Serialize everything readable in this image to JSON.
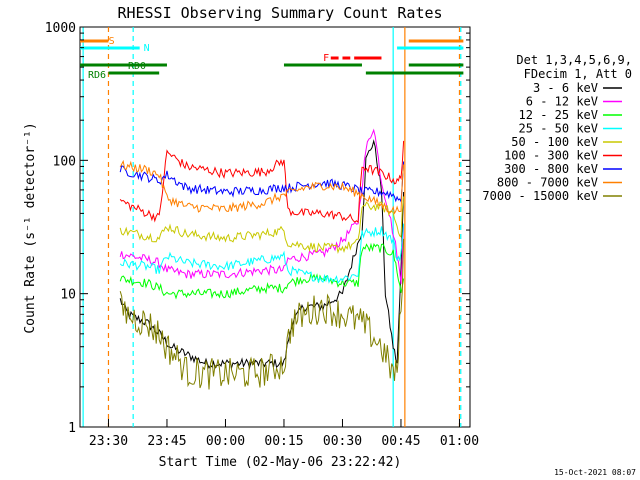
{
  "chart_data": {
    "type": "line",
    "title": "RHESSI Observing Summary Count Rates",
    "xlabel": "Start Time (02-May-06 23:22:42)",
    "ylabel": "Count Rate (s⁻¹ detector⁻¹)",
    "yscale": "log",
    "ylim": [
      1,
      1000
    ],
    "xlim": [
      "23:22:42",
      "01:02:42"
    ],
    "x_ticks": [
      "23:30",
      "23:45",
      "00:00",
      "00:15",
      "00:30",
      "00:45",
      "01:00"
    ],
    "y_ticks": [
      "1",
      "10",
      "100",
      "1000"
    ],
    "grid": false,
    "legend_position": "right",
    "legend_header": [
      "Det 1,3,4,5,6,9,",
      "FDecim 1, Att 0"
    ],
    "timestamp": "15-Oct-2021 08:07",
    "series": [
      {
        "name": "3 - 6 keV",
        "color": "#000000",
        "x": [
          "23:26",
          "23:33",
          "23:35",
          "23:40",
          "23:43",
          "23:46",
          "23:50",
          "23:55",
          "00:00",
          "00:05",
          "00:10",
          "00:15",
          "00:17",
          "00:20",
          "00:25",
          "00:30",
          "00:35",
          "00:36",
          "00:38",
          "00:40",
          "00:41",
          "00:43",
          "00:44",
          "00:45",
          "00:46"
        ],
        "y": [
          null,
          9,
          7,
          6,
          5,
          4,
          3.5,
          3,
          3,
          3,
          3,
          3,
          6,
          8,
          8,
          10,
          30,
          100,
          140,
          60,
          10,
          4,
          3,
          15,
          120
        ]
      },
      {
        "name": "6 - 12 keV",
        "color": "#ff00ff",
        "x": [
          "23:33",
          "23:40",
          "23:43",
          "23:45",
          "23:50",
          "00:00",
          "00:10",
          "00:15",
          "00:16",
          "00:20",
          "00:25",
          "00:30",
          "00:34",
          "00:36",
          "00:38",
          "00:40",
          "00:42",
          "00:44",
          "00:45",
          "00:46"
        ],
        "y": [
          20,
          18,
          17,
          15,
          14,
          14,
          15,
          15,
          18,
          19,
          20,
          25,
          35,
          120,
          180,
          70,
          40,
          20,
          12,
          60
        ]
      },
      {
        "name": "12 - 25 keV",
        "color": "#00ff00",
        "x": [
          "23:33",
          "23:40",
          "23:43",
          "23:45",
          "23:50",
          "00:00",
          "00:10",
          "00:15",
          "00:16",
          "00:20",
          "00:25",
          "00:30",
          "00:34",
          "00:35",
          "00:40",
          "00:43",
          "00:44",
          "00:45",
          "00:46"
        ],
        "y": [
          13,
          12,
          11,
          10,
          10,
          10,
          11,
          11,
          12,
          13,
          13,
          12,
          12,
          22,
          22,
          20,
          15,
          10,
          15
        ]
      },
      {
        "name": "25 - 50 keV",
        "color": "#00ffff",
        "x": [
          "23:33",
          "23:40",
          "23:43",
          "23:45",
          "23:50",
          "00:00",
          "00:10",
          "00:15",
          "00:16",
          "00:20",
          "00:25",
          "00:30",
          "00:34",
          "00:35",
          "00:40",
          "00:43",
          "00:44",
          "00:45",
          "00:46"
        ],
        "y": [
          17,
          16,
          15,
          19,
          17,
          16,
          18,
          19,
          15,
          14,
          13,
          13,
          14,
          28,
          30,
          25,
          18,
          20,
          40
        ]
      },
      {
        "name": "50 - 100 keV",
        "color": "#c8c800",
        "x": [
          "23:33",
          "23:40",
          "23:43",
          "23:45",
          "23:50",
          "00:00",
          "00:10",
          "00:15",
          "00:16",
          "00:20",
          "00:25",
          "00:30",
          "00:34",
          "00:35",
          "00:40",
          "00:43",
          "00:44",
          "00:45",
          "00:46"
        ],
        "y": [
          30,
          27,
          26,
          32,
          28,
          26,
          28,
          30,
          24,
          23,
          22,
          22,
          24,
          45,
          45,
          40,
          32,
          28,
          80
        ]
      },
      {
        "name": "100 - 300 keV",
        "color": "#ff0000",
        "x": [
          "23:33",
          "23:36",
          "23:40",
          "23:43",
          "23:45",
          "23:50",
          "00:00",
          "00:10",
          "00:15",
          "00:16",
          "00:20",
          "00:25",
          "00:30",
          "00:34",
          "00:35",
          "00:40",
          "00:43",
          "00:44",
          "00:45",
          "00:46"
        ],
        "y": [
          50,
          45,
          40,
          37,
          115,
          90,
          80,
          82,
          100,
          42,
          40,
          40,
          38,
          35,
          90,
          80,
          72,
          68,
          75,
          190
        ]
      },
      {
        "name": "300 - 800 keV",
        "color": "#0000ff",
        "x": [
          "23:33",
          "23:40",
          "23:43",
          "23:45",
          "23:50",
          "00:00",
          "00:10",
          "00:15",
          "00:16",
          "00:20",
          "00:25",
          "00:30",
          "00:34",
          "00:35",
          "00:40",
          "00:43",
          "00:44",
          "00:45",
          "00:46"
        ],
        "y": [
          85,
          75,
          70,
          78,
          62,
          58,
          60,
          63,
          62,
          65,
          68,
          65,
          60,
          58,
          58,
          55,
          52,
          50,
          140
        ]
      },
      {
        "name": "800 - 7000 keV",
        "color": "#ff8000",
        "x": [
          "23:33",
          "23:40",
          "23:43",
          "23:45",
          "23:50",
          "00:00",
          "00:10",
          "00:15",
          "00:20",
          "00:25",
          "00:30",
          "00:35",
          "00:40",
          "00:43",
          "00:44",
          "00:45",
          "00:46"
        ],
        "y": [
          92,
          85,
          78,
          52,
          45,
          43,
          48,
          55,
          62,
          65,
          63,
          55,
          46,
          42,
          42,
          45,
          140
        ]
      },
      {
        "name": "7000 - 15000 keV",
        "color": "#808000",
        "x": [
          "23:33",
          "23:35",
          "23:37",
          "23:40",
          "23:43",
          "23:45",
          "23:48",
          "23:50",
          "23:55",
          "00:00",
          "00:05",
          "00:10",
          "00:15",
          "00:17",
          "00:20",
          "00:25",
          "00:30",
          "00:35",
          "00:40",
          "00:43",
          "00:44",
          "00:45",
          "00:46"
        ],
        "y": [
          8,
          7,
          6.5,
          6,
          5,
          4,
          3.2,
          2.6,
          2.5,
          2.5,
          2.5,
          2.6,
          3,
          6,
          7,
          8,
          7,
          6,
          4,
          2.5,
          2.5,
          8,
          40
        ]
      }
    ],
    "flags": [
      {
        "label": "S",
        "color": "#ff8000",
        "segments": [
          [
            "23:22:42",
            "23:30"
          ],
          [
            "00:47",
            "01:01"
          ]
        ]
      },
      {
        "label": "N",
        "color": "#00ffff",
        "segments": [
          [
            "23:22:42",
            "23:38"
          ],
          [
            "00:44",
            "01:01"
          ]
        ]
      },
      {
        "label": "F",
        "color": "#ff0000",
        "segments": [
          [
            "00:27",
            "00:29"
          ],
          [
            "00:30",
            "00:32"
          ],
          [
            "00:33",
            "00:40"
          ]
        ]
      },
      {
        "label": "RD0",
        "color": "#008000",
        "segments": [
          [
            "23:22:42",
            "23:45"
          ],
          [
            "00:15",
            "00:35"
          ],
          [
            "00:47",
            "01:01"
          ]
        ]
      },
      {
        "label": "RD6",
        "color": "#008000",
        "segments": [
          [
            "23:30",
            "23:43"
          ],
          [
            "00:36",
            "01:01"
          ]
        ]
      }
    ],
    "vertical_markers": [
      {
        "time": "23:23:30",
        "color": "#00ffff",
        "style": "solid"
      },
      {
        "time": "23:30:00",
        "color": "#ff8000",
        "style": "dashed"
      },
      {
        "time": "23:36:20",
        "color": "#00ffff",
        "style": "dashed"
      },
      {
        "time": "00:43:00",
        "color": "#00ffff",
        "style": "solid"
      },
      {
        "time": "00:46:00",
        "color": "#ff8000",
        "style": "solid"
      },
      {
        "time": "01:00:00",
        "color": "#ff8000",
        "style": "dashed"
      },
      {
        "time": "01:00:20",
        "color": "#00ffff",
        "style": "dashed"
      }
    ]
  }
}
